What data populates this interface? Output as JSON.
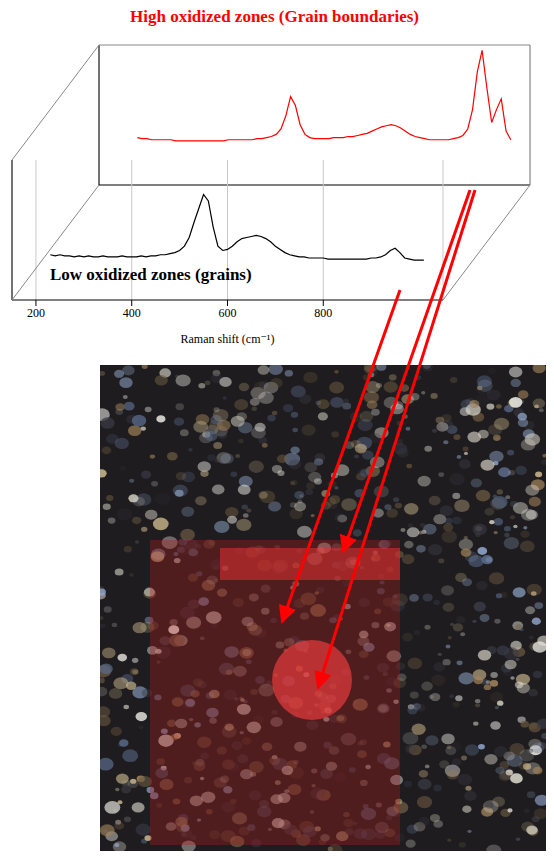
{
  "chart_data": {
    "type": "line",
    "x_label": "Raman shift (cm⁻¹)",
    "xlim": [
      150,
      1050
    ],
    "xticks": [
      200,
      400,
      600,
      800
    ],
    "ylim": [
      -30,
      100
    ],
    "tick_labels": "x",
    "grid": true,
    "x": [
      230,
      240,
      250,
      260,
      270,
      280,
      290,
      300,
      310,
      320,
      330,
      340,
      350,
      360,
      370,
      380,
      390,
      400,
      410,
      420,
      430,
      440,
      450,
      460,
      470,
      480,
      490,
      500,
      510,
      520,
      530,
      540,
      550,
      560,
      570,
      580,
      590,
      600,
      610,
      620,
      630,
      640,
      650,
      660,
      670,
      680,
      690,
      700,
      710,
      720,
      730,
      740,
      750,
      760,
      770,
      780,
      790,
      800,
      810,
      820,
      830,
      840,
      850,
      860,
      870,
      880,
      890,
      900,
      910,
      920,
      930,
      940,
      950,
      960,
      970,
      980,
      990,
      1000,
      1010
    ],
    "series": [
      {
        "name": "High oxidized zones (Grain boundaries)",
        "color": "#ff0000",
        "values": [
          14,
          13,
          13,
          12,
          12,
          12,
          12,
          12,
          11,
          11,
          11,
          11,
          11,
          11,
          11,
          11,
          11,
          11,
          11,
          12,
          12,
          12,
          12,
          12,
          12,
          13,
          13,
          14,
          15,
          17,
          22,
          34,
          52,
          44,
          26,
          17,
          14,
          13,
          13,
          13,
          13,
          14,
          14,
          14,
          15,
          15,
          16,
          17,
          18,
          20,
          22,
          24,
          25,
          26,
          25,
          23,
          20,
          17,
          15,
          14,
          13,
          12,
          12,
          12,
          12,
          12,
          13,
          14,
          16,
          22,
          40,
          75,
          95,
          60,
          28,
          40,
          50,
          20,
          12
        ]
      },
      {
        "name": "Low oxidized zones (grains)",
        "color": "#000000",
        "values": [
          12,
          11,
          12,
          11,
          11,
          10,
          11,
          10,
          11,
          10,
          10,
          11,
          10,
          10,
          10,
          11,
          10,
          10,
          10,
          11,
          10,
          11,
          11,
          12,
          12,
          13,
          14,
          16,
          20,
          28,
          42,
          55,
          68,
          62,
          38,
          20,
          16,
          17,
          20,
          24,
          27,
          28,
          29,
          30,
          29,
          27,
          24,
          20,
          17,
          14,
          12,
          11,
          10,
          10,
          9,
          9,
          9,
          9,
          8,
          8,
          8,
          8,
          8,
          8,
          8,
          8,
          8,
          9,
          9,
          10,
          12,
          16,
          18,
          14,
          9,
          8,
          7,
          7,
          7
        ]
      }
    ]
  }
}
